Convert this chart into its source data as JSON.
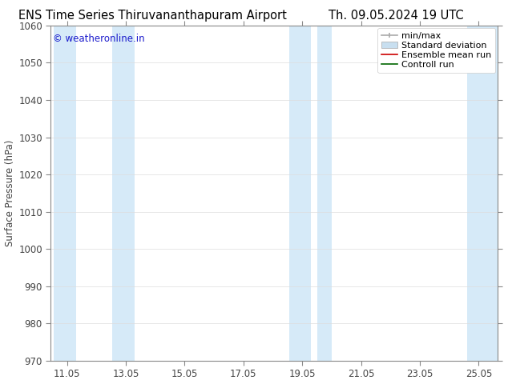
{
  "title_left": "ENS Time Series Thiruvananthapuram Airport",
  "title_right": "Th. 09.05.2024 19 UTC",
  "ylabel": "Surface Pressure (hPa)",
  "ylim": [
    970,
    1060
  ],
  "yticks": [
    970,
    980,
    990,
    1000,
    1010,
    1020,
    1030,
    1040,
    1050,
    1060
  ],
  "xtick_labels": [
    "11.05",
    "13.05",
    "15.05",
    "17.05",
    "19.05",
    "21.05",
    "23.05",
    "25.05"
  ],
  "xtick_positions": [
    11.05,
    13.05,
    15.05,
    17.05,
    19.05,
    21.05,
    23.05,
    25.05
  ],
  "xmin": 10.5,
  "xmax": 25.7,
  "watermark": "© weatheronline.in",
  "watermark_color": "#1a1acc",
  "shade_bands": [
    {
      "xmin": 10.6,
      "xmax": 11.35
    },
    {
      "xmin": 12.6,
      "xmax": 13.35
    },
    {
      "xmin": 18.6,
      "xmax": 19.35
    },
    {
      "xmin": 19.55,
      "xmax": 20.05
    },
    {
      "xmin": 24.65,
      "xmax": 25.7
    }
  ],
  "shade_color": "#d6eaf8",
  "bg_color": "#ffffff",
  "spine_color": "#888888",
  "tick_color": "#444444",
  "legend_labels": [
    "min/max",
    "Standard deviation",
    "Ensemble mean run",
    "Controll run"
  ],
  "legend_line_color": "#aaaaaa",
  "legend_patch_color": "#c8dff0",
  "legend_patch_edge": "#aaaaaa",
  "ensemble_color": "#cc0000",
  "control_color": "#006600",
  "title_fontsize": 10.5,
  "tick_fontsize": 8.5,
  "watermark_fontsize": 8.5,
  "legend_fontsize": 8
}
